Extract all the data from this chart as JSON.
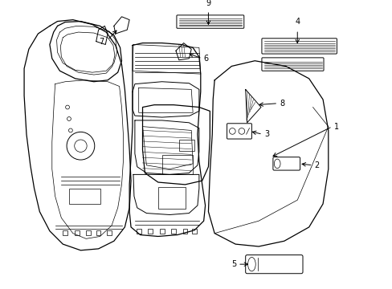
{
  "background_color": "#ffffff",
  "line_color": "#000000",
  "text_color": "#000000",
  "figsize": [
    4.89,
    3.6
  ],
  "dpi": 100,
  "label_fontsize": 7.0
}
